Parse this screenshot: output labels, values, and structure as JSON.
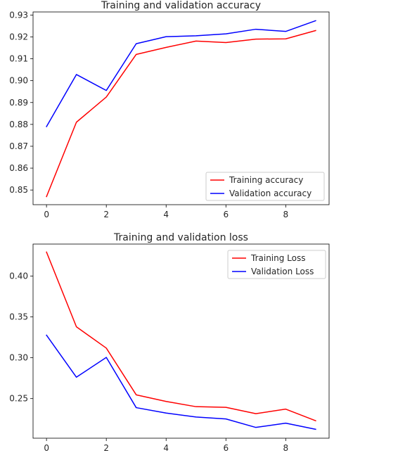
{
  "chart_data": [
    {
      "type": "line",
      "title": "Training and validation accuracy",
      "xlabel": "",
      "ylabel": "",
      "x": [
        0,
        1,
        2,
        3,
        4,
        5,
        6,
        7,
        8,
        9
      ],
      "xticks": [
        0,
        2,
        4,
        6,
        8
      ],
      "xlim": [
        -0.45,
        9.45
      ],
      "yticks": [
        0.85,
        0.86,
        0.87,
        0.88,
        0.89,
        0.9,
        0.91,
        0.92,
        0.93
      ],
      "ylim": [
        0.8433,
        0.9314
      ],
      "ytick_decimals": 2,
      "grid": false,
      "legend_position": "lower-right",
      "series": [
        {
          "name": "Training accuracy",
          "color": "#ff0000",
          "values": [
            0.847,
            0.881,
            0.8925,
            0.912,
            0.9152,
            0.9181,
            0.9174,
            0.919,
            0.9191,
            0.9229
          ]
        },
        {
          "name": "Validation accuracy",
          "color": "#0000ff",
          "values": [
            0.879,
            0.9028,
            0.8955,
            0.9169,
            0.9201,
            0.9205,
            0.9214,
            0.9235,
            0.9225,
            0.9274
          ]
        }
      ]
    },
    {
      "type": "line",
      "title": "Training and validation loss",
      "xlabel": "",
      "ylabel": "",
      "x": [
        0,
        1,
        2,
        3,
        4,
        5,
        6,
        7,
        8,
        9
      ],
      "xticks": [
        0,
        2,
        4,
        6,
        8
      ],
      "xlim": [
        -0.45,
        9.45
      ],
      "yticks": [
        0.25,
        0.3,
        0.35,
        0.4
      ],
      "ylim": [
        0.2015,
        0.4392
      ],
      "ytick_decimals": 2,
      "grid": false,
      "legend_position": "upper-right",
      "series": [
        {
          "name": "Training Loss",
          "color": "#ff0000",
          "values": [
            0.4294,
            0.3379,
            0.3118,
            0.2546,
            0.2465,
            0.2401,
            0.2393,
            0.2315,
            0.2371,
            0.2229
          ]
        },
        {
          "name": "Validation Loss",
          "color": "#0000ff",
          "values": [
            0.3276,
            0.2762,
            0.3004,
            0.2389,
            0.2323,
            0.2274,
            0.2251,
            0.2147,
            0.2199,
            0.2124
          ]
        }
      ]
    }
  ]
}
